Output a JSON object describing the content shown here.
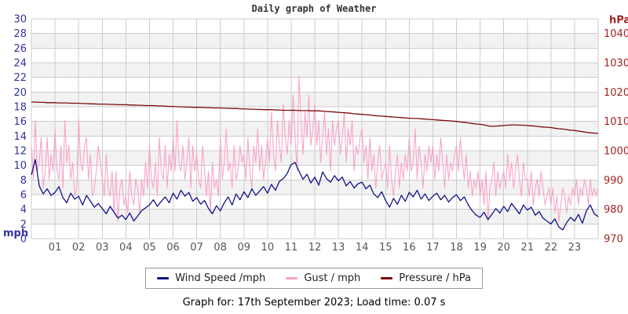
{
  "page": {
    "title": "Daily graph of Weather",
    "caption": "Graph for: 17th September 2023; Load time: 0.07 s"
  },
  "legend": {
    "items": [
      {
        "label": "Wind Speed /mph",
        "color": "#12128a"
      },
      {
        "label": "Gust / mph",
        "color": "#fb9ec6"
      },
      {
        "label": "Pressure / hPa",
        "color": "#7c0a0a"
      }
    ]
  },
  "chart_data": {
    "type": "line",
    "title": "Daily graph of Weather",
    "grid": true,
    "grid_color": "#cccccc",
    "band_fill": "#f2f2f2",
    "x_axis": {
      "unit": "hour of day",
      "min": 0,
      "max": 24,
      "tick_labels": [
        "01",
        "02",
        "03",
        "04",
        "05",
        "06",
        "07",
        "08",
        "09",
        "10",
        "11",
        "12",
        "13",
        "14",
        "15",
        "16",
        "17",
        "18",
        "19",
        "20",
        "21",
        "22",
        "23"
      ],
      "tick_label_color": "#555555"
    },
    "left_axis": {
      "label": "mph",
      "min": 0,
      "max": 30,
      "tick_step": 2,
      "color": "#3333a0"
    },
    "right_axis": {
      "label": "hPa",
      "min": 970,
      "max": 1045,
      "tick_start": 970,
      "tick_end": 1040,
      "tick_step": 10,
      "color": "#a22424"
    },
    "series": [
      {
        "name": "Gust / mph",
        "axis": "left",
        "color": "#fb9ec6",
        "stroke_width": 1.0,
        "sample_minutes": 5,
        "values": [
          12.7,
          8.1,
          16.1,
          9.2,
          10.4,
          13.8,
          6.9,
          9.2,
          13.8,
          8.1,
          11.5,
          9.2,
          14.9,
          9.2,
          8.1,
          12.7,
          6.9,
          16.1,
          10.4,
          12.7,
          8.1,
          10.4,
          5.8,
          7.0,
          16.4,
          10.4,
          9.2,
          12.7,
          13.8,
          8.1,
          11.5,
          5.8,
          6.9,
          9.2,
          12.7,
          10.4,
          8.1,
          5.8,
          11.5,
          6.9,
          5.8,
          9.2,
          3.5,
          9.2,
          2.3,
          6.9,
          8.1,
          4.6,
          5.8,
          3.5,
          9.2,
          5.8,
          4.6,
          8.1,
          6.9,
          3.5,
          8.1,
          5.8,
          10.4,
          6.9,
          12.7,
          8.1,
          6.9,
          10.4,
          5.8,
          13.8,
          9.2,
          8.1,
          12.7,
          6.9,
          11.5,
          9.2,
          13.8,
          9.2,
          16.1,
          10.4,
          9.2,
          12.7,
          8.1,
          10.4,
          13.8,
          6.9,
          12.7,
          9.2,
          11.5,
          8.1,
          6.9,
          12.7,
          9.2,
          5.8,
          9.2,
          3.5,
          10.4,
          6.9,
          8.1,
          5.8,
          13.8,
          8.1,
          10.4,
          15.0,
          9.2,
          10.4,
          6.9,
          12.7,
          8.1,
          9.2,
          12.7,
          10.4,
          11.5,
          8.1,
          13.8,
          9.2,
          6.9,
          12.7,
          10.4,
          15.0,
          9.2,
          12.7,
          8.1,
          10.4,
          13.8,
          10.4,
          17.3,
          11.5,
          9.2,
          16.1,
          12.7,
          10.4,
          18.4,
          13.8,
          11.5,
          16.1,
          12.7,
          19.6,
          13.8,
          9.2,
          22.2,
          16.1,
          11.5,
          17.3,
          13.8,
          19.6,
          12.7,
          15.0,
          18.4,
          12.7,
          16.1,
          10.4,
          13.8,
          17.3,
          11.5,
          15.0,
          9.2,
          16.1,
          12.7,
          15.0,
          16.1,
          11.5,
          13.8,
          17.3,
          10.4,
          15.0,
          12.7,
          16.1,
          9.2,
          12.7,
          11.5,
          13.8,
          15.0,
          10.4,
          12.7,
          8.1,
          13.8,
          9.2,
          11.5,
          6.9,
          10.4,
          12.7,
          8.1,
          9.2,
          10.4,
          6.9,
          12.7,
          8.1,
          5.8,
          9.2,
          11.5,
          6.9,
          10.4,
          8.1,
          11.5,
          9.2,
          13.8,
          9.2,
          10.4,
          15.0,
          8.1,
          12.7,
          10.4,
          6.9,
          11.5,
          9.2,
          12.7,
          10.4,
          12.7,
          8.1,
          11.5,
          9.2,
          13.8,
          10.4,
          6.9,
          11.5,
          8.1,
          10.4,
          9.2,
          11.5,
          12.7,
          9.2,
          13.8,
          10.4,
          8.1,
          11.5,
          6.9,
          9.2,
          5.8,
          8.1,
          6.9,
          9.2,
          5.8,
          8.1,
          4.6,
          9.2,
          2.3,
          6.9,
          8.1,
          10.4,
          5.8,
          9.2,
          6.9,
          8.1,
          9.2,
          6.9,
          11.5,
          8.1,
          10.4,
          6.9,
          9.2,
          11.5,
          8.1,
          5.8,
          10.4,
          8.1,
          8.1,
          5.8,
          9.2,
          4.6,
          6.9,
          8.1,
          5.8,
          9.2,
          6.9,
          4.6,
          5.8,
          6.9,
          4.6,
          6.9,
          3.5,
          5.8,
          2.3,
          4.6,
          6.9,
          5.8,
          3.5,
          5.8,
          4.6,
          6.9,
          5.8,
          8.1,
          4.6,
          6.9,
          5.8,
          8.1,
          6.9,
          4.6,
          8.1,
          5.8,
          6.9,
          5.8,
          6.9
        ]
      },
      {
        "name": "Wind Speed /mph",
        "axis": "left",
        "color": "#12128a",
        "stroke_width": 1.3,
        "sample_minutes": 10,
        "values": [
          8.7,
          10.8,
          7.2,
          6.1,
          6.8,
          5.9,
          6.3,
          7.1,
          5.6,
          4.9,
          6.2,
          5.4,
          5.8,
          4.6,
          5.9,
          5.1,
          4.3,
          4.8,
          4.1,
          3.4,
          4.4,
          3.6,
          2.8,
          3.2,
          2.6,
          3.5,
          2.4,
          3.1,
          3.8,
          4.2,
          4.6,
          5.3,
          4.4,
          5.1,
          5.7,
          4.9,
          6.2,
          5.4,
          6.6,
          5.8,
          6.3,
          5.1,
          5.6,
          4.7,
          5.2,
          4.1,
          3.4,
          4.5,
          3.8,
          4.9,
          5.7,
          4.6,
          6.1,
          5.3,
          6.4,
          5.6,
          6.8,
          5.9,
          6.5,
          7.1,
          6.2,
          7.4,
          6.6,
          7.8,
          8.2,
          8.9,
          10.1,
          10.4,
          9.2,
          8.1,
          8.8,
          7.6,
          8.4,
          7.3,
          9.1,
          8.2,
          7.7,
          8.6,
          7.9,
          8.4,
          7.2,
          7.8,
          6.9,
          7.5,
          7.7,
          6.8,
          7.3,
          6.1,
          5.6,
          6.4,
          5.2,
          4.3,
          5.5,
          4.7,
          5.9,
          5.1,
          6.3,
          5.7,
          6.6,
          5.4,
          6.1,
          5.2,
          5.8,
          6.2,
          5.3,
          5.9,
          5.0,
          5.6,
          6.0,
          5.2,
          5.7,
          4.6,
          3.8,
          3.2,
          2.9,
          3.6,
          2.6,
          3.3,
          4.1,
          3.5,
          4.4,
          3.7,
          4.8,
          4.1,
          3.4,
          4.6,
          3.9,
          4.3,
          3.2,
          3.7,
          2.8,
          2.4,
          2.0,
          2.7,
          1.6,
          1.2,
          2.2,
          2.9,
          2.4,
          3.3,
          2.1,
          3.8,
          4.6,
          3.4,
          3.0
        ]
      },
      {
        "name": "Pressure / hPa",
        "axis": "right",
        "color": "#7c0a0a",
        "stroke_width": 1.3,
        "sample_minutes": 10,
        "values": [
          1016.6,
          1016.6,
          1016.5,
          1016.5,
          1016.4,
          1016.4,
          1016.4,
          1016.3,
          1016.3,
          1016.3,
          1016.2,
          1016.2,
          1016.2,
          1016.1,
          1016.1,
          1016.0,
          1016.0,
          1015.9,
          1015.9,
          1015.9,
          1015.8,
          1015.8,
          1015.7,
          1015.7,
          1015.7,
          1015.6,
          1015.6,
          1015.5,
          1015.5,
          1015.4,
          1015.4,
          1015.4,
          1015.3,
          1015.3,
          1015.2,
          1015.1,
          1015.1,
          1015.0,
          1015.0,
          1014.9,
          1014.9,
          1014.8,
          1014.8,
          1014.8,
          1014.7,
          1014.7,
          1014.6,
          1014.6,
          1014.6,
          1014.5,
          1014.5,
          1014.4,
          1014.4,
          1014.3,
          1014.3,
          1014.2,
          1014.2,
          1014.1,
          1014.1,
          1014.0,
          1014.0,
          1014.0,
          1013.9,
          1013.9,
          1013.8,
          1013.8,
          1013.8,
          1013.8,
          1013.7,
          1013.7,
          1013.7,
          1013.6,
          1013.6,
          1013.6,
          1013.5,
          1013.4,
          1013.3,
          1013.2,
          1013.1,
          1013.0,
          1012.9,
          1012.8,
          1012.6,
          1012.5,
          1012.4,
          1012.3,
          1012.2,
          1012.0,
          1011.9,
          1011.8,
          1011.7,
          1011.6,
          1011.5,
          1011.4,
          1011.3,
          1011.2,
          1011.1,
          1011.0,
          1011.0,
          1010.9,
          1010.8,
          1010.7,
          1010.6,
          1010.5,
          1010.4,
          1010.3,
          1010.2,
          1010.1,
          1010.0,
          1009.8,
          1009.7,
          1009.5,
          1009.3,
          1009.1,
          1009.0,
          1008.8,
          1008.5,
          1008.3,
          1008.4,
          1008.5,
          1008.6,
          1008.7,
          1008.8,
          1008.8,
          1008.7,
          1008.7,
          1008.6,
          1008.5,
          1008.4,
          1008.2,
          1008.1,
          1008.0,
          1007.9,
          1007.7,
          1007.5,
          1007.4,
          1007.2,
          1007.0,
          1006.9,
          1006.7,
          1006.5,
          1006.3,
          1006.1,
          1006.0,
          1005.9
        ]
      }
    ]
  }
}
